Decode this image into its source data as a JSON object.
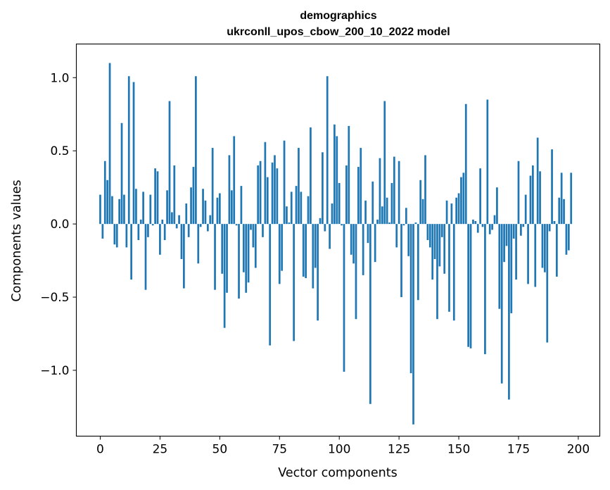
{
  "chart_data": {
    "type": "bar",
    "title": "demographics",
    "subtitle": "ukrconll_upos_cbow_200_10_2022 model",
    "xlabel": "Vector components",
    "ylabel": "Components values",
    "xlim": [
      -10,
      209
    ],
    "ylim": [
      -1.45,
      1.23
    ],
    "xticks": [
      0,
      25,
      50,
      75,
      100,
      125,
      150,
      175,
      200
    ],
    "xtick_labels": [
      "0",
      "25",
      "50",
      "75",
      "100",
      "125",
      "150",
      "175",
      "200"
    ],
    "yticks": [
      1.0,
      0.5,
      0.0,
      -0.5,
      -1.0
    ],
    "ytick_labels": [
      "1.0",
      "0.5",
      "0.0",
      "−0.5",
      "−1.0"
    ],
    "bar_color": "#1f77b4",
    "values": [
      0.2,
      -0.1,
      0.43,
      0.3,
      1.1,
      0.19,
      -0.14,
      -0.16,
      0.17,
      0.69,
      0.2,
      -0.16,
      1.01,
      -0.38,
      0.97,
      0.24,
      -0.11,
      0.03,
      0.22,
      -0.45,
      -0.09,
      0.2,
      -0.01,
      0.38,
      0.36,
      -0.21,
      0.03,
      -0.11,
      0.23,
      0.84,
      0.08,
      0.4,
      -0.03,
      0.06,
      -0.24,
      -0.44,
      0.14,
      -0.09,
      0.25,
      0.39,
      1.01,
      -0.27,
      -0.02,
      0.24,
      0.16,
      -0.05,
      0.06,
      0.52,
      -0.45,
      0.18,
      0.21,
      -0.34,
      -0.71,
      -0.47,
      0.47,
      0.23,
      0.6,
      -0.01,
      -0.51,
      0.26,
      -0.33,
      -0.47,
      -0.4,
      -0.04,
      -0.16,
      -0.3,
      0.4,
      0.43,
      -0.09,
      0.56,
      0.32,
      -0.83,
      0.42,
      0.47,
      0.38,
      -0.41,
      -0.32,
      0.57,
      0.12,
      0.01,
      0.22,
      -0.8,
      0.26,
      0.52,
      0.22,
      -0.36,
      -0.37,
      0.19,
      0.66,
      -0.44,
      -0.3,
      -0.66,
      0.04,
      0.49,
      -0.05,
      1.01,
      -0.17,
      0.14,
      0.68,
      0.6,
      0.28,
      -0.01,
      -1.01,
      0.4,
      0.67,
      -0.21,
      -0.27,
      -0.65,
      0.39,
      0.52,
      -0.35,
      0.16,
      -0.13,
      -1.23,
      0.29,
      -0.26,
      0.03,
      0.45,
      0.12,
      0.84,
      0.18,
      0.01,
      0.28,
      0.46,
      -0.16,
      0.43,
      -0.5,
      -0.01,
      0.11,
      -0.22,
      -1.02,
      -1.37,
      0.01,
      -0.52,
      0.3,
      0.17,
      0.47,
      -0.11,
      -0.16,
      -0.38,
      -0.24,
      -0.65,
      -0.29,
      -0.09,
      -0.34,
      0.16,
      -0.6,
      0.14,
      -0.66,
      0.18,
      0.21,
      0.32,
      0.35,
      0.82,
      -0.84,
      -0.85,
      0.03,
      0.02,
      -0.06,
      0.38,
      -0.02,
      -0.89,
      0.85,
      -0.07,
      -0.04,
      0.06,
      0.25,
      -0.58,
      -1.09,
      -0.26,
      -0.15,
      -1.2,
      -0.61,
      -0.1,
      -0.38,
      0.43,
      -0.08,
      -0.02,
      0.2,
      -0.41,
      0.33,
      0.4,
      -0.43,
      0.59,
      0.36,
      -0.3,
      -0.33,
      -0.81,
      -0.05,
      0.51,
      0.02,
      -0.36,
      0.18,
      0.35,
      0.17,
      -0.21,
      -0.18,
      0.35
    ]
  }
}
